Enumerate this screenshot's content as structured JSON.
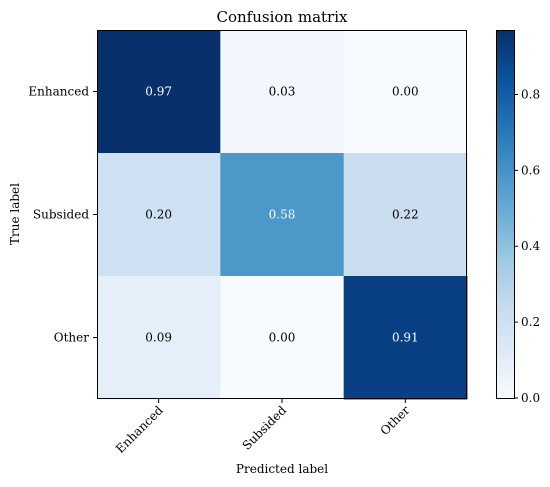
{
  "chart_data": {
    "type": "heatmap",
    "title": "Confusion matrix",
    "xlabel": "Predicted label",
    "ylabel": "True label",
    "x_categories": [
      "Enhanced",
      "Subsided",
      "Other"
    ],
    "y_categories": [
      "Enhanced",
      "Subsided",
      "Other"
    ],
    "values": [
      [
        0.97,
        0.03,
        0.0
      ],
      [
        0.2,
        0.58,
        0.22
      ],
      [
        0.09,
        0.0,
        0.91
      ]
    ],
    "cell_labels": [
      [
        "0.97",
        "0.03",
        "0.00"
      ],
      [
        "0.20",
        "0.58",
        "0.22"
      ],
      [
        "0.09",
        "0.00",
        "0.91"
      ]
    ],
    "colormap": "Blues",
    "colorbar_range": [
      0,
      0.97
    ],
    "colorbar_ticks": [
      0.0,
      0.2,
      0.4,
      0.6,
      0.8
    ],
    "colorbar_tick_labels": [
      "0.0",
      "0.2",
      "0.4",
      "0.6",
      "0.8"
    ],
    "grid": false,
    "x_tick_rotation": "45°"
  }
}
